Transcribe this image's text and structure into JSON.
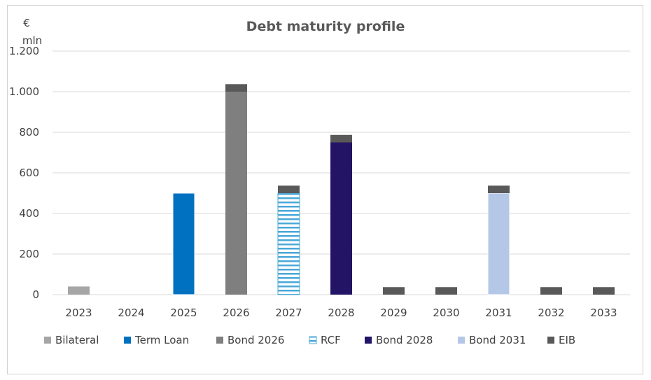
{
  "chart_data": {
    "type": "bar",
    "stacked": true,
    "title": "Debt maturity profile",
    "ylabel_line1": "€",
    "ylabel_line2": "mln",
    "ylim": [
      0,
      1200
    ],
    "yticks": [
      0,
      200,
      400,
      600,
      800,
      1000,
      1200
    ],
    "ytick_labels": [
      "0",
      "200",
      "400",
      "600",
      "800",
      "1.000",
      "1.200"
    ],
    "grid": true,
    "legend_position": "bottom",
    "categories": [
      "2023",
      "2024",
      "2025",
      "2026",
      "2027",
      "2028",
      "2029",
      "2030",
      "2031",
      "2032",
      "2033"
    ],
    "series": [
      {
        "name": "Bilateral",
        "color": "#a6a6a6",
        "pattern": "solid",
        "values": [
          40,
          0,
          0,
          0,
          0,
          0,
          0,
          0,
          0,
          0,
          0
        ]
      },
      {
        "name": "Term Loan",
        "color": "#0070c0",
        "pattern": "solid",
        "values": [
          0,
          0,
          500,
          0,
          0,
          0,
          0,
          0,
          0,
          0,
          0
        ]
      },
      {
        "name": "Bond 2026",
        "color": "#7f7f7f",
        "pattern": "solid",
        "values": [
          0,
          0,
          0,
          1000,
          0,
          0,
          0,
          0,
          0,
          0,
          0
        ]
      },
      {
        "name": "RCF",
        "color": "#4aa8d8",
        "pattern": "horizontal-stripes",
        "values": [
          0,
          0,
          0,
          0,
          500,
          0,
          0,
          0,
          0,
          0,
          0
        ]
      },
      {
        "name": "Bond 2028",
        "color": "#241466",
        "pattern": "solid",
        "values": [
          0,
          0,
          0,
          0,
          0,
          750,
          0,
          0,
          0,
          0,
          0
        ]
      },
      {
        "name": "Bond 2031",
        "color": "#b4c7e7",
        "pattern": "solid",
        "values": [
          0,
          0,
          0,
          0,
          0,
          0,
          0,
          0,
          500,
          0,
          0
        ]
      },
      {
        "name": "EIB",
        "color": "#595959",
        "pattern": "solid",
        "values": [
          0,
          0,
          0,
          37,
          37,
          37,
          37,
          37,
          37,
          37,
          37
        ]
      }
    ]
  }
}
